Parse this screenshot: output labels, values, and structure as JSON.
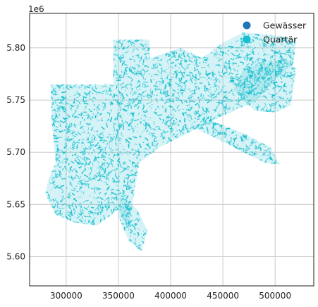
{
  "chart_data": {
    "type": "map",
    "title": "",
    "xlabel": "",
    "ylabel": "",
    "y_offset_label": "1e6",
    "xlim": [
      265000,
      537000
    ],
    "ylim": [
      5572000,
      5833000
    ],
    "x_ticks": [
      300000,
      350000,
      400000,
      450000,
      500000
    ],
    "x_tick_labels": [
      "300000",
      "350000",
      "400000",
      "450000",
      "500000"
    ],
    "y_ticks": [
      5600000,
      5650000,
      5700000,
      5750000,
      5800000
    ],
    "y_tick_labels": [
      "5.60",
      "5.65",
      "5.70",
      "5.75",
      "5.80"
    ],
    "grid": true,
    "legend_position": "top-right",
    "series": [
      {
        "name": "Gewässer",
        "color": "#1f77b4"
      },
      {
        "name": "Quartär",
        "color": "#17becf"
      }
    ],
    "regions": [
      {
        "series": "Quartär",
        "polygon": [
          [
            285000,
            5765000
          ],
          [
            345000,
            5765000
          ],
          [
            345000,
            5808000
          ],
          [
            380000,
            5808000
          ],
          [
            380000,
            5790000
          ],
          [
            410000,
            5800000
          ],
          [
            430000,
            5790000
          ],
          [
            450000,
            5805000
          ],
          [
            470000,
            5815000
          ],
          [
            500000,
            5812000
          ],
          [
            520000,
            5808000
          ],
          [
            518000,
            5785000
          ],
          [
            500000,
            5770000
          ],
          [
            480000,
            5748000
          ],
          [
            450000,
            5735000
          ],
          [
            420000,
            5720000
          ],
          [
            390000,
            5705000
          ],
          [
            370000,
            5690000
          ],
          [
            365000,
            5660000
          ],
          [
            360000,
            5625000
          ],
          [
            350000,
            5645000
          ],
          [
            330000,
            5630000
          ],
          [
            310000,
            5632000
          ],
          [
            290000,
            5640000
          ],
          [
            280000,
            5660000
          ],
          [
            283000,
            5675000
          ],
          [
            290000,
            5690000
          ],
          [
            286000,
            5730000
          ]
        ]
      },
      {
        "series": "Quartär",
        "polygon": [
          [
            352000,
            5660000
          ],
          [
            368000,
            5645000
          ],
          [
            378000,
            5625000
          ],
          [
            372000,
            5605000
          ],
          [
            360000,
            5615000
          ],
          [
            350000,
            5638000
          ]
        ]
      },
      {
        "series": "Quartär",
        "polygon": [
          [
            420000,
            5725000
          ],
          [
            450000,
            5710000
          ],
          [
            470000,
            5700000
          ],
          [
            490000,
            5690000
          ],
          [
            505000,
            5688000
          ],
          [
            495000,
            5705000
          ],
          [
            470000,
            5718000
          ],
          [
            440000,
            5730000
          ]
        ]
      },
      {
        "series": "Quartär",
        "polygon": [
          [
            470000,
            5780000
          ],
          [
            510000,
            5790000
          ],
          [
            520000,
            5780000
          ],
          [
            515000,
            5745000
          ],
          [
            500000,
            5738000
          ],
          [
            480000,
            5740000
          ],
          [
            460000,
            5760000
          ]
        ]
      }
    ]
  }
}
